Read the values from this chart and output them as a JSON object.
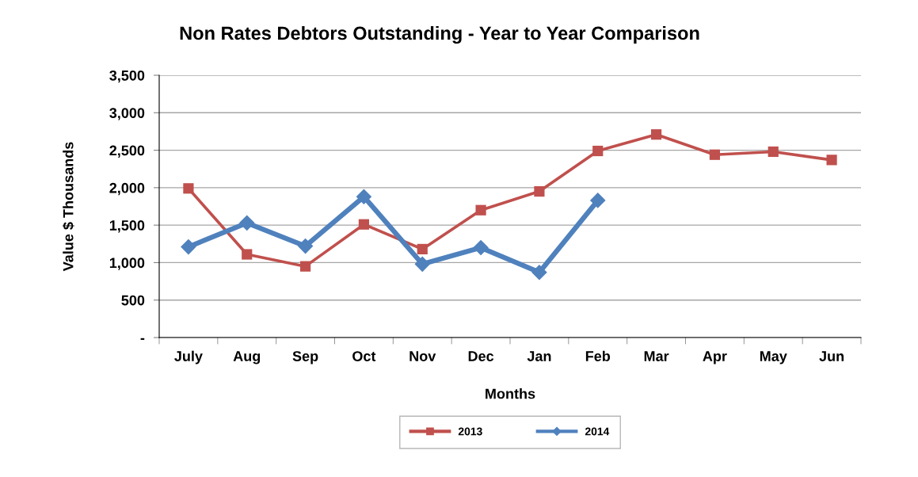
{
  "chart_data": {
    "type": "line",
    "title": "Non Rates Debtors Outstanding - Year to Year Comparison",
    "xlabel": "Months",
    "ylabel": "Value $ Thousands",
    "categories": [
      "July",
      "Aug",
      "Sep",
      "Oct",
      "Nov",
      "Dec",
      "Jan",
      "Feb",
      "Mar",
      "Apr",
      "May",
      "Jun"
    ],
    "series": [
      {
        "name": "2013",
        "color": "#c0504d",
        "marker": "square",
        "values": [
          1990,
          1110,
          950,
          1510,
          1180,
          1700,
          1950,
          2490,
          2710,
          2440,
          2480,
          2370
        ]
      },
      {
        "name": "2014",
        "color": "#4f81bd",
        "marker": "diamond",
        "values": [
          1210,
          1530,
          1220,
          1880,
          980,
          1200,
          870,
          1830,
          null,
          null,
          null,
          null
        ]
      }
    ],
    "ylim": [
      0,
      3500
    ],
    "yticks": [
      {
        "value": 0,
        "label": "-"
      },
      500,
      {
        "value": 1000,
        "label": "1,000"
      },
      {
        "value": 1500,
        "label": "1,500"
      },
      {
        "value": 2000,
        "label": "2,000"
      },
      {
        "value": 2500,
        "label": "2,500"
      },
      {
        "value": 3000,
        "label": "3,000"
      },
      {
        "value": 3500,
        "label": "3,500"
      }
    ],
    "grid": "y",
    "legend": "bottom",
    "line_style": "solid"
  }
}
